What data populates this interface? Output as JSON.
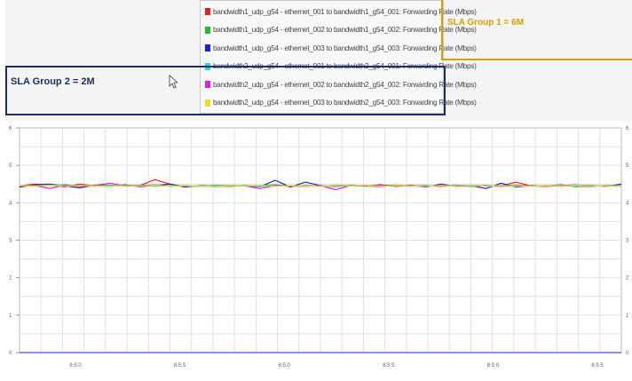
{
  "sla_group_1": {
    "label": "SLA Group 1 = 6M",
    "color": "#d8a000"
  },
  "sla_group_2": {
    "label": "SLA Group 2 = 2M",
    "color": "#1c2f68"
  },
  "chart_data": {
    "type": "line",
    "title": "",
    "xlabel": "",
    "ylabel": "",
    "ylim": [
      0,
      6
    ],
    "y_ticks": [
      "0",
      "1",
      "2",
      "3",
      "4",
      "5",
      "6"
    ],
    "x_tick_labels": [
      "8:5:0",
      "8:5:5",
      "8:5:0",
      "8:5:5",
      "8:5:0",
      "8:5:5"
    ],
    "grid": true,
    "legend_position": "top",
    "series": [
      {
        "name": "bandwidth1_udp_g54 - ethernet_001 to bandwidth1_g54_001: Forwarding Rate (Mbps)",
        "color": "#e02020",
        "values": [
          4.45,
          4.5,
          4.48,
          4.42,
          4.5,
          4.45,
          4.44,
          4.47,
          4.46,
          4.62,
          4.5,
          4.44,
          4.45,
          4.43,
          4.46,
          4.45,
          4.44,
          4.46,
          4.44,
          4.46,
          4.45,
          4.44,
          4.46,
          4.45,
          4.43,
          4.47,
          4.45,
          4.44,
          4.46,
          4.45,
          4.44,
          4.46,
          4.45,
          4.55,
          4.45,
          4.44,
          4.46,
          4.45,
          4.43,
          4.47,
          4.45
        ]
      },
      {
        "name": "bandwidth1_udp_g54 - ethernet_002 to bandwidth1_g54_002: Forwarding Rate (Mbps)",
        "color": "#20c020",
        "values": [
          4.44,
          4.47,
          4.46,
          4.48,
          4.45,
          4.46,
          4.47,
          4.45,
          4.46,
          4.47,
          4.45,
          4.46,
          4.44,
          4.47,
          4.46,
          4.45,
          4.46,
          4.48,
          4.45,
          4.46,
          4.44,
          4.47,
          4.46,
          4.45,
          4.46,
          4.47,
          4.45,
          4.46,
          4.44,
          4.47,
          4.46,
          4.45,
          4.46,
          4.47,
          4.45,
          4.46,
          4.44,
          4.47,
          4.46,
          4.45,
          4.46
        ]
      },
      {
        "name": "bandwidth1_udp_g54 - ethernet_003 to bandwidth1_g54_003: Forwarding Rate (Mbps)",
        "color": "#2020d0",
        "values": [
          4.42,
          4.48,
          4.5,
          4.45,
          4.4,
          4.47,
          4.44,
          4.48,
          4.43,
          4.46,
          4.5,
          4.42,
          4.46,
          4.45,
          4.44,
          4.46,
          4.43,
          4.6,
          4.42,
          4.55,
          4.46,
          4.44,
          4.46,
          4.45,
          4.48,
          4.44,
          4.47,
          4.42,
          4.5,
          4.44,
          4.46,
          4.38,
          4.52,
          4.42,
          4.46,
          4.45,
          4.48,
          4.43,
          4.46,
          4.44,
          4.5
        ]
      },
      {
        "name": "bandwidth2_udp_g54 - ethernet_001 to bandwidth2_g54_001: Forwarding Rate (Mbps)",
        "color": "#20d8e8",
        "values": [
          4.46,
          4.44,
          4.46,
          4.47,
          4.45,
          4.44,
          4.46,
          4.45,
          4.47,
          4.44,
          4.46,
          4.45,
          4.44,
          4.46,
          4.45,
          4.47,
          4.44,
          4.46,
          4.45,
          4.44,
          4.46,
          4.45,
          4.47,
          4.44,
          4.46,
          4.45,
          4.44,
          4.46,
          4.45,
          4.47,
          4.44,
          4.46,
          4.45,
          4.44,
          4.46,
          4.45,
          4.47,
          4.44,
          4.46,
          4.45,
          4.44
        ]
      },
      {
        "name": "bandwidth2_udp_g54 - ethernet_002 to bandwidth2_g54_002: Forwarding Rate (Mbps)",
        "color": "#e020e0",
        "values": [
          4.45,
          4.46,
          4.38,
          4.47,
          4.44,
          4.46,
          4.52,
          4.45,
          4.46,
          4.48,
          4.44,
          4.46,
          4.45,
          4.44,
          4.46,
          4.45,
          4.38,
          4.46,
          4.45,
          4.44,
          4.46,
          4.35,
          4.46,
          4.45,
          4.47,
          4.44,
          4.46,
          4.45,
          4.44,
          4.46,
          4.47,
          4.45,
          4.44,
          4.46,
          4.45,
          4.44,
          4.46,
          4.48,
          4.44,
          4.46,
          4.45
        ]
      },
      {
        "name": "bandwidth2_udp_g54 - ethernet_003 to bandwidth2_g54_003: Forwarding Rate (Mbps)",
        "color": "#e8e020",
        "values": [
          4.46,
          4.45,
          4.47,
          4.44,
          4.46,
          4.45,
          4.44,
          4.46,
          4.45,
          4.47,
          4.44,
          4.46,
          4.45,
          4.44,
          4.46,
          4.45,
          4.47,
          4.44,
          4.46,
          4.45,
          4.44,
          4.46,
          4.45,
          4.47,
          4.44,
          4.46,
          4.45,
          4.44,
          4.46,
          4.45,
          4.47,
          4.44,
          4.46,
          4.45,
          4.44,
          4.46,
          4.45,
          4.47,
          4.44,
          4.46,
          4.45
        ]
      }
    ]
  }
}
